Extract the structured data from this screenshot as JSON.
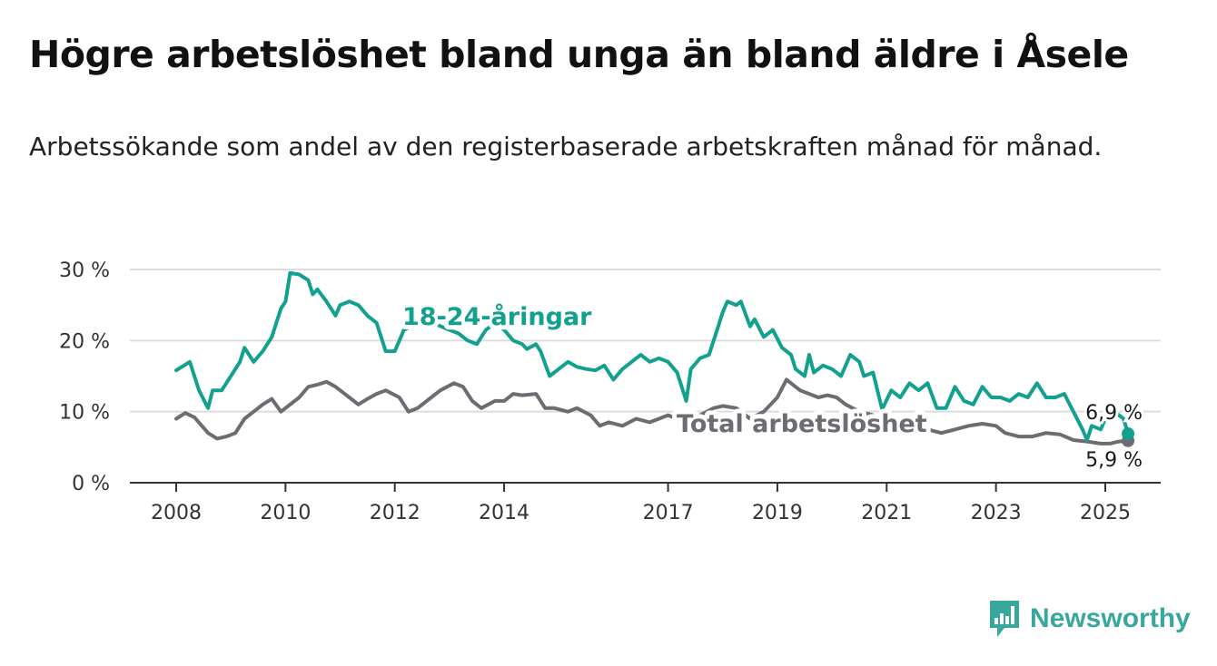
{
  "title": "Högre arbetslöshet bland unga än bland äldre i Åsele",
  "subtitle": "Arbetssökande som andel av den registerbaserade arbetskraften månad för månad.",
  "brand": {
    "name": "Newsworthy",
    "icon": "newsworthy-logo-icon",
    "color": "#3aa79e"
  },
  "chart_data": {
    "type": "line",
    "ylim": [
      0,
      30
    ],
    "xlim": [
      "2008-01",
      "2025-06"
    ],
    "yticks": [
      0,
      10,
      20,
      30
    ],
    "ytick_labels": [
      "0 %",
      "10 %",
      "20 %",
      "30 %"
    ],
    "xticks": [
      "2008-01",
      "2010-01",
      "2012-01",
      "2014-01",
      "2017-01",
      "2019-01",
      "2021-01",
      "2023-01",
      "2025-01"
    ],
    "xtick_labels": [
      "2008",
      "2010",
      "2012",
      "2014",
      "2017",
      "2019",
      "2021",
      "2023",
      "2025"
    ],
    "grid": true,
    "series": [
      {
        "name": "18-24-åringar",
        "color": "#12a08f",
        "end_label": "6,9 %",
        "points": [
          [
            "2008-01",
            15.8
          ],
          [
            "2008-04",
            17.0
          ],
          [
            "2008-06",
            13.0
          ],
          [
            "2008-08",
            10.5
          ],
          [
            "2008-09",
            13.0
          ],
          [
            "2008-11",
            13.0
          ],
          [
            "2009-01",
            15.0
          ],
          [
            "2009-03",
            17.0
          ],
          [
            "2009-04",
            19.0
          ],
          [
            "2009-06",
            17.0
          ],
          [
            "2009-08",
            18.5
          ],
          [
            "2009-10",
            20.5
          ],
          [
            "2009-12",
            24.5
          ],
          [
            "2010-01",
            25.5
          ],
          [
            "2010-02",
            29.5
          ],
          [
            "2010-04",
            29.3
          ],
          [
            "2010-06",
            28.5
          ],
          [
            "2010-07",
            26.5
          ],
          [
            "2010-08",
            27.2
          ],
          [
            "2010-10",
            25.5
          ],
          [
            "2010-12",
            23.5
          ],
          [
            "2011-01",
            25.0
          ],
          [
            "2011-03",
            25.5
          ],
          [
            "2011-05",
            25.0
          ],
          [
            "2011-07",
            23.5
          ],
          [
            "2011-09",
            22.5
          ],
          [
            "2011-11",
            18.5
          ],
          [
            "2012-01",
            18.5
          ],
          [
            "2012-03",
            21.5
          ],
          [
            "2012-06",
            22.5
          ],
          [
            "2012-08",
            22.0
          ],
          [
            "2012-10",
            22.3
          ],
          [
            "2013-01",
            21.5
          ],
          [
            "2013-03",
            21.0
          ],
          [
            "2013-05",
            20.0
          ],
          [
            "2013-07",
            19.5
          ],
          [
            "2013-09",
            21.5
          ],
          [
            "2013-11",
            22.5
          ],
          [
            "2014-01",
            21.5
          ],
          [
            "2014-03",
            20.0
          ],
          [
            "2014-05",
            19.5
          ],
          [
            "2014-06",
            18.8
          ],
          [
            "2014-08",
            19.5
          ],
          [
            "2014-09",
            18.5
          ],
          [
            "2014-11",
            15.0
          ],
          [
            "2015-01",
            16.0
          ],
          [
            "2015-03",
            17.0
          ],
          [
            "2015-05",
            16.3
          ],
          [
            "2015-07",
            16.0
          ],
          [
            "2015-09",
            15.8
          ],
          [
            "2015-11",
            16.5
          ],
          [
            "2016-01",
            14.5
          ],
          [
            "2016-03",
            16.0
          ],
          [
            "2016-05",
            17.0
          ],
          [
            "2016-07",
            18.0
          ],
          [
            "2016-09",
            17.0
          ],
          [
            "2016-11",
            17.5
          ],
          [
            "2017-01",
            17.0
          ],
          [
            "2017-03",
            15.5
          ],
          [
            "2017-05",
            11.5
          ],
          [
            "2017-06",
            16.0
          ],
          [
            "2017-08",
            17.5
          ],
          [
            "2017-10",
            18.0
          ],
          [
            "2017-12",
            22.0
          ],
          [
            "2018-01",
            24.0
          ],
          [
            "2018-02",
            25.5
          ],
          [
            "2018-04",
            25.0
          ],
          [
            "2018-05",
            25.5
          ],
          [
            "2018-07",
            22.0
          ],
          [
            "2018-08",
            23.0
          ],
          [
            "2018-10",
            20.5
          ],
          [
            "2018-12",
            21.5
          ],
          [
            "2019-02",
            19.0
          ],
          [
            "2019-04",
            18.0
          ],
          [
            "2019-05",
            16.0
          ],
          [
            "2019-07",
            15.0
          ],
          [
            "2019-08",
            18.0
          ],
          [
            "2019-09",
            15.5
          ],
          [
            "2019-11",
            16.5
          ],
          [
            "2020-01",
            16.0
          ],
          [
            "2020-03",
            15.0
          ],
          [
            "2020-05",
            18.0
          ],
          [
            "2020-07",
            17.0
          ],
          [
            "2020-08",
            15.0
          ],
          [
            "2020-10",
            15.5
          ],
          [
            "2020-12",
            10.3
          ],
          [
            "2021-02",
            13.0
          ],
          [
            "2021-04",
            12.0
          ],
          [
            "2021-06",
            14.0
          ],
          [
            "2021-08",
            13.0
          ],
          [
            "2021-10",
            14.0
          ],
          [
            "2021-12",
            10.5
          ],
          [
            "2022-02",
            10.5
          ],
          [
            "2022-04",
            13.5
          ],
          [
            "2022-06",
            11.5
          ],
          [
            "2022-08",
            11.0
          ],
          [
            "2022-10",
            13.5
          ],
          [
            "2022-12",
            12.0
          ],
          [
            "2023-02",
            12.0
          ],
          [
            "2023-04",
            11.5
          ],
          [
            "2023-06",
            12.5
          ],
          [
            "2023-08",
            12.0
          ],
          [
            "2023-10",
            14.0
          ],
          [
            "2023-12",
            12.0
          ],
          [
            "2024-02",
            12.0
          ],
          [
            "2024-04",
            12.5
          ],
          [
            "2024-06",
            10.0
          ],
          [
            "2024-08",
            7.5
          ],
          [
            "2024-09",
            6.0
          ],
          [
            "2024-10",
            8.0
          ],
          [
            "2024-12",
            7.5
          ],
          [
            "2025-01",
            9.0
          ],
          [
            "2025-02",
            9.5
          ],
          [
            "2025-03",
            10.0
          ],
          [
            "2025-05",
            9.0
          ],
          [
            "2025-06",
            6.9
          ]
        ]
      },
      {
        "name": "Total arbetslöshet",
        "color": "#6e6b72",
        "end_label": "5,9 %",
        "points": [
          [
            "2008-01",
            9.0
          ],
          [
            "2008-03",
            9.8
          ],
          [
            "2008-05",
            9.2
          ],
          [
            "2008-08",
            7.0
          ],
          [
            "2008-10",
            6.2
          ],
          [
            "2008-12",
            6.5
          ],
          [
            "2009-02",
            7.0
          ],
          [
            "2009-04",
            9.0
          ],
          [
            "2009-06",
            10.0
          ],
          [
            "2009-08",
            11.0
          ],
          [
            "2009-10",
            11.8
          ],
          [
            "2009-12",
            10.0
          ],
          [
            "2010-02",
            11.0
          ],
          [
            "2010-04",
            12.0
          ],
          [
            "2010-06",
            13.5
          ],
          [
            "2010-08",
            13.8
          ],
          [
            "2010-10",
            14.2
          ],
          [
            "2010-12",
            13.5
          ],
          [
            "2011-03",
            12.0
          ],
          [
            "2011-05",
            11.0
          ],
          [
            "2011-07",
            11.8
          ],
          [
            "2011-09",
            12.5
          ],
          [
            "2011-11",
            13.0
          ],
          [
            "2012-02",
            12.0
          ],
          [
            "2012-04",
            10.0
          ],
          [
            "2012-06",
            10.5
          ],
          [
            "2012-09",
            12.0
          ],
          [
            "2012-11",
            13.0
          ],
          [
            "2013-02",
            14.0
          ],
          [
            "2013-04",
            13.5
          ],
          [
            "2013-06",
            11.5
          ],
          [
            "2013-08",
            10.5
          ],
          [
            "2013-11",
            11.5
          ],
          [
            "2014-01",
            11.5
          ],
          [
            "2014-03",
            12.5
          ],
          [
            "2014-05",
            12.3
          ],
          [
            "2014-08",
            12.5
          ],
          [
            "2014-10",
            10.5
          ],
          [
            "2014-12",
            10.5
          ],
          [
            "2015-03",
            10.0
          ],
          [
            "2015-05",
            10.5
          ],
          [
            "2015-08",
            9.5
          ],
          [
            "2015-10",
            8.0
          ],
          [
            "2015-12",
            8.5
          ],
          [
            "2016-03",
            8.0
          ],
          [
            "2016-06",
            9.0
          ],
          [
            "2016-09",
            8.5
          ],
          [
            "2016-11",
            9.0
          ],
          [
            "2017-01",
            9.5
          ],
          [
            "2017-03",
            9.0
          ],
          [
            "2017-05",
            8.5
          ],
          [
            "2017-08",
            9.5
          ],
          [
            "2017-11",
            10.5
          ],
          [
            "2018-01",
            10.8
          ],
          [
            "2018-04",
            10.5
          ],
          [
            "2018-07",
            9.0
          ],
          [
            "2018-10",
            10.0
          ],
          [
            "2019-01",
            12.0
          ],
          [
            "2019-03",
            14.5
          ],
          [
            "2019-06",
            13.0
          ],
          [
            "2019-08",
            12.5
          ],
          [
            "2019-10",
            12.0
          ],
          [
            "2019-12",
            12.3
          ],
          [
            "2020-02",
            12.0
          ],
          [
            "2020-04",
            11.0
          ],
          [
            "2020-07",
            10.0
          ],
          [
            "2020-10",
            9.5
          ],
          [
            "2021-01",
            8.5
          ],
          [
            "2021-04",
            8.0
          ],
          [
            "2021-07",
            8.0
          ],
          [
            "2021-10",
            7.5
          ],
          [
            "2022-01",
            7.0
          ],
          [
            "2022-04",
            7.5
          ],
          [
            "2022-07",
            8.0
          ],
          [
            "2022-10",
            8.3
          ],
          [
            "2023-01",
            8.0
          ],
          [
            "2023-03",
            7.0
          ],
          [
            "2023-06",
            6.5
          ],
          [
            "2023-09",
            6.5
          ],
          [
            "2023-12",
            7.0
          ],
          [
            "2024-03",
            6.8
          ],
          [
            "2024-06",
            6.0
          ],
          [
            "2024-09",
            5.8
          ],
          [
            "2024-12",
            5.5
          ],
          [
            "2025-02",
            5.5
          ],
          [
            "2025-04",
            5.8
          ],
          [
            "2025-06",
            5.9
          ]
        ]
      }
    ]
  }
}
